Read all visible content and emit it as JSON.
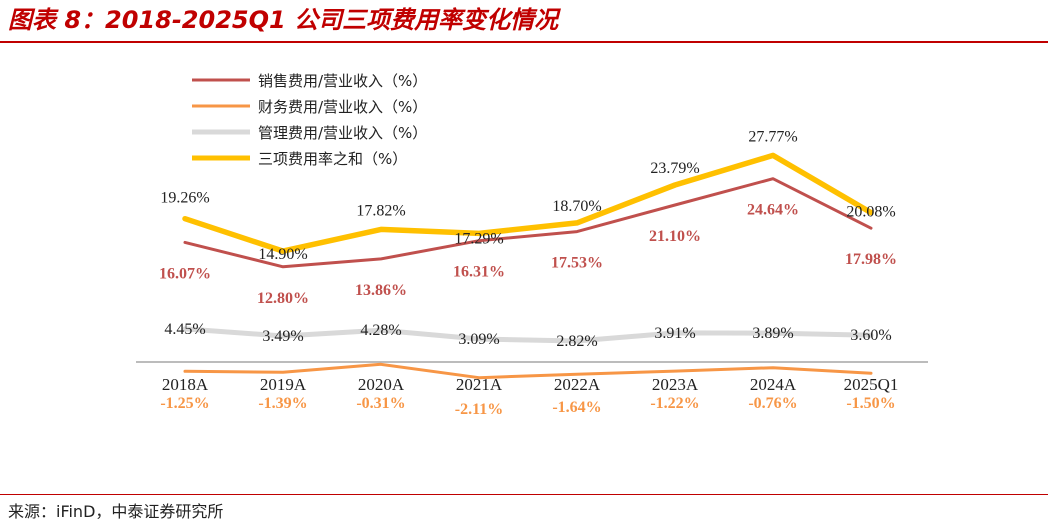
{
  "header": {
    "title": "图表 8：2018-2025Q1 公司三项费用率变化情况"
  },
  "footer": {
    "source": "来源：iFinD，中泰证券研究所"
  },
  "colors": {
    "sales": "#c0504d",
    "finance": "#f79646",
    "admin": "#d9d9d9",
    "total": "#ffc000",
    "rule": "#c00000",
    "axis": "#a6a6a6"
  },
  "chart_data": {
    "type": "line",
    "title": "2018-2025Q1 公司三项费用率变化情况",
    "categories": [
      "2018A",
      "2019A",
      "2020A",
      "2021A",
      "2022A",
      "2023A",
      "2024A",
      "2025Q1"
    ],
    "ylim": [
      -5,
      30
    ],
    "xlabel": "",
    "ylabel": "",
    "grid": false,
    "legend": "top-left",
    "series": [
      {
        "key": "sales",
        "name": "销售费用/营业收入（%）",
        "values": [
          16.07,
          12.8,
          13.86,
          16.31,
          17.53,
          21.1,
          24.64,
          17.98
        ],
        "labels": [
          "16.07%",
          "12.80%",
          "13.86%",
          "16.31%",
          "17.53%",
          "21.10%",
          "24.64%",
          "17.98%"
        ]
      },
      {
        "key": "finance",
        "name": "财务费用/营业收入（%）",
        "values": [
          -1.25,
          -1.39,
          -0.31,
          -2.11,
          -1.64,
          -1.22,
          -0.76,
          -1.5
        ],
        "labels": [
          "-1.25%",
          "-1.39%",
          "-0.31%",
          "-2.11%",
          "-1.64%",
          "-1.22%",
          "-0.76%",
          "-1.50%"
        ]
      },
      {
        "key": "admin",
        "name": "管理费用/营业收入（%）",
        "values": [
          4.45,
          3.49,
          4.28,
          3.09,
          2.82,
          3.91,
          3.89,
          3.6
        ],
        "labels": [
          "4.45%",
          "3.49%",
          "4.28%",
          "3.09%",
          "2.82%",
          "3.91%",
          "3.89%",
          "3.60%"
        ]
      },
      {
        "key": "total",
        "name": "三项费用率之和（%）",
        "values": [
          19.26,
          14.9,
          17.82,
          17.29,
          18.7,
          23.79,
          27.77,
          20.08
        ],
        "labels": [
          "19.26%",
          "14.90%",
          "17.82%",
          "17.29%",
          "18.70%",
          "23.79%",
          "27.77%",
          "20.08%"
        ]
      }
    ]
  }
}
